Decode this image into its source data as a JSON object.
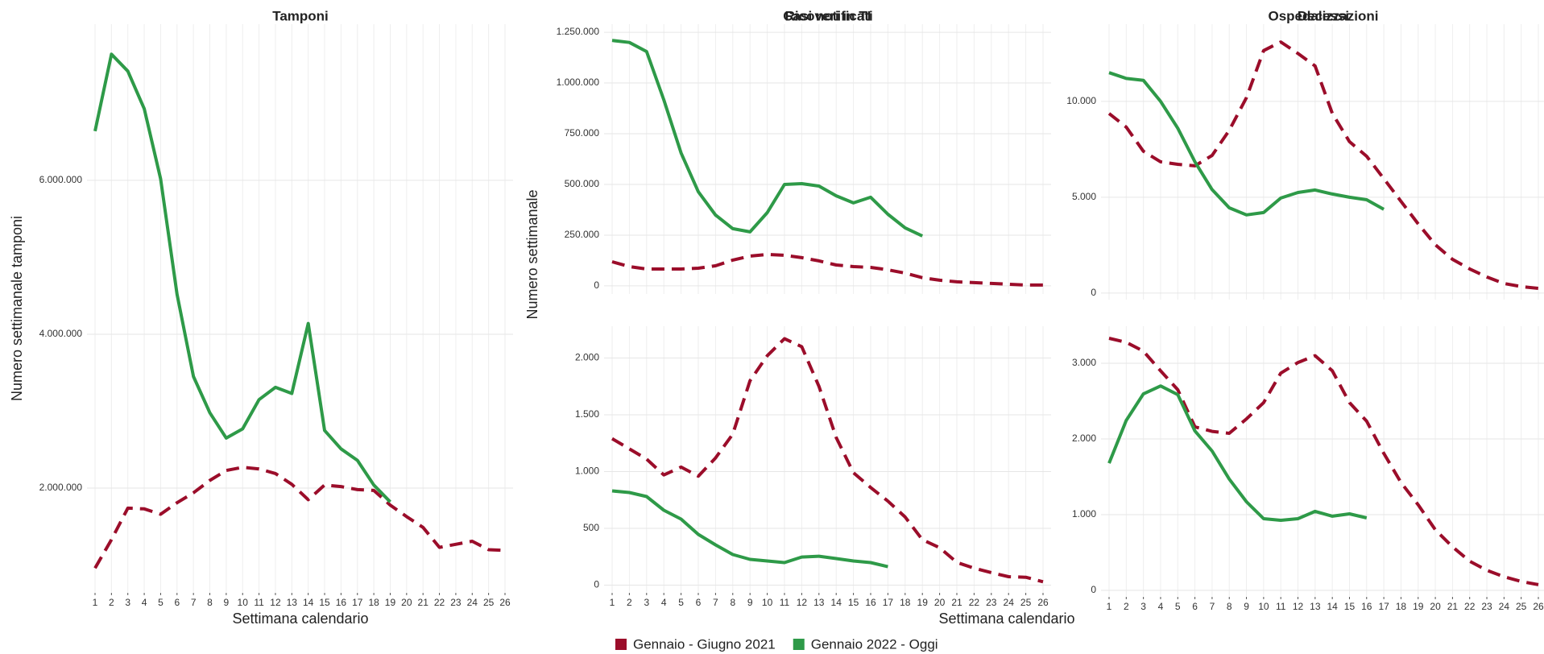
{
  "chart_data": [
    {
      "type": "line",
      "title": "Tamponi",
      "y_label": "Numero settimanale tamponi",
      "x_label": "Settimana calendario",
      "categories": [
        "1",
        "2",
        "3",
        "4",
        "5",
        "6",
        "7",
        "8",
        "9",
        "10",
        "11",
        "12",
        "13",
        "14",
        "15",
        "16",
        "17",
        "18",
        "19",
        "20",
        "21",
        "22",
        "23",
        "24",
        "25",
        "26"
      ],
      "ylim": [
        650000,
        8030000
      ],
      "yticks": [
        {
          "value": 2000000,
          "label": "2.000.000"
        },
        {
          "value": 4000000,
          "label": "4.000.000"
        },
        {
          "value": 6000000,
          "label": "6.000.000"
        }
      ],
      "grid": true,
      "series": [
        {
          "name": "Gennaio - Giugno 2021",
          "color": "#9b0d2a",
          "line_style": "dashed",
          "values": [
            960000,
            1330000,
            1740000,
            1730000,
            1660000,
            1810000,
            1940000,
            2100000,
            2230000,
            2270000,
            2250000,
            2190000,
            2050000,
            1850000,
            2040000,
            2020000,
            1980000,
            1970000,
            1780000,
            1630000,
            1490000,
            1230000,
            1270000,
            1310000,
            1200000,
            1190000
          ]
        },
        {
          "name": "Gennaio 2022 - Oggi",
          "color": "#2e9a48",
          "line_style": "solid",
          "values": [
            6640000,
            7640000,
            7420000,
            6930000,
            6020000,
            4520000,
            3450000,
            2980000,
            2650000,
            2770000,
            3150000,
            3310000,
            3230000,
            4140000,
            2750000,
            2510000,
            2360000,
            2040000,
            1820000,
            null,
            null,
            null,
            null,
            null,
            null,
            null
          ]
        }
      ]
    },
    {
      "type": "line",
      "title": "Casi notificati",
      "y_label": "Numero settimanale",
      "ylim": [
        -40000,
        1290000
      ],
      "yticks": [
        0,
        {
          "value": 250000,
          "label": "250.000"
        },
        {
          "value": 500000,
          "label": "500.000"
        },
        {
          "value": 750000,
          "label": "750.000"
        },
        {
          "value": 1000000,
          "label": "1.000.000"
        },
        {
          "value": 1250000,
          "label": "1.250.000"
        }
      ],
      "grid": true,
      "series": [
        {
          "color": "#9b0d2a",
          "line_style": "dashed",
          "values": [
            119000,
            95000,
            83000,
            83000,
            83000,
            87000,
            99000,
            127000,
            147000,
            155000,
            151000,
            139000,
            123000,
            103000,
            95000,
            91000,
            79000,
            63000,
            40000,
            28000,
            20000,
            16000,
            12000,
            8000,
            4000,
            4000
          ]
        },
        {
          "color": "#2e9a48",
          "line_style": "solid",
          "values": [
            1210000,
            1200000,
            1155000,
            917000,
            655000,
            464000,
            349000,
            282000,
            266000,
            361000,
            500000,
            504000,
            492000,
            444000,
            409000,
            437000,
            353000,
            286000,
            246000,
            null,
            null,
            null,
            null,
            null,
            null,
            null
          ]
        }
      ]
    },
    {
      "type": "line",
      "title": "Ospedalizzazioni",
      "ylim": [
        -340,
        14030
      ],
      "yticks": [
        0,
        {
          "value": 5000,
          "label": "5.000"
        },
        {
          "value": 10000,
          "label": "10.000"
        }
      ],
      "grid": true,
      "series": [
        {
          "color": "#9b0d2a",
          "line_style": "dashed",
          "values": [
            9370,
            8660,
            7400,
            6850,
            6720,
            6640,
            7180,
            8490,
            10200,
            12650,
            13100,
            12500,
            11850,
            9370,
            7900,
            7140,
            5970,
            4790,
            3610,
            2520,
            1760,
            1260,
            840,
            500,
            340,
            250
          ]
        },
        {
          "color": "#2e9a48",
          "line_style": "solid",
          "values": [
            11500,
            11200,
            11100,
            10000,
            8600,
            6850,
            5400,
            4450,
            4080,
            4200,
            4960,
            5250,
            5380,
            5170,
            5000,
            4870,
            4370,
            null,
            null,
            null,
            null,
            null,
            null,
            null,
            null,
            null
          ]
        }
      ]
    },
    {
      "type": "line",
      "title": "Ricoveri in TI",
      "categories": [
        "1",
        "2",
        "3",
        "4",
        "5",
        "6",
        "7",
        "8",
        "9",
        "10",
        "11",
        "12",
        "13",
        "14",
        "15",
        "16",
        "17",
        "18",
        "19",
        "20",
        "21",
        "22",
        "23",
        "24",
        "25",
        "26"
      ],
      "ylim": [
        -60,
        2280
      ],
      "yticks": [
        0,
        500,
        {
          "value": 1000,
          "label": "1.000"
        },
        {
          "value": 1500,
          "label": "1.500"
        },
        {
          "value": 2000,
          "label": "2.000"
        }
      ],
      "grid": true,
      "series": [
        {
          "color": "#9b0d2a",
          "line_style": "dashed",
          "values": [
            1290,
            1200,
            1110,
            970,
            1040,
            960,
            1120,
            1330,
            1800,
            2020,
            2170,
            2100,
            1750,
            1300,
            990,
            860,
            740,
            600,
            400,
            330,
            200,
            150,
            110,
            75,
            70,
            30
          ]
        },
        {
          "color": "#2e9a48",
          "line_style": "solid",
          "values": [
            830,
            816,
            780,
            660,
            582,
            447,
            355,
            270,
            227,
            213,
            199,
            248,
            255,
            234,
            213,
            199,
            163,
            null,
            null,
            null,
            null,
            null,
            null,
            null,
            null,
            null
          ]
        }
      ]
    },
    {
      "type": "line",
      "title": "Decessi",
      "x_label": "Settimana calendario",
      "categories": [
        "1",
        "2",
        "3",
        "4",
        "5",
        "6",
        "7",
        "8",
        "9",
        "10",
        "11",
        "12",
        "13",
        "14",
        "15",
        "16",
        "17",
        "18",
        "19",
        "20",
        "21",
        "22",
        "23",
        "24",
        "25",
        "26"
      ],
      "ylim": [
        -75,
        3490
      ],
      "yticks": [
        0,
        {
          "value": 1000,
          "label": "1.000"
        },
        {
          "value": 2000,
          "label": "2.000"
        },
        {
          "value": 3000,
          "label": "3.000"
        }
      ],
      "grid": true,
      "series": [
        {
          "color": "#9b0d2a",
          "line_style": "dashed",
          "values": [
            3330,
            3277,
            3160,
            2900,
            2650,
            2160,
            2100,
            2075,
            2265,
            2480,
            2870,
            3010,
            3100,
            2900,
            2480,
            2235,
            1810,
            1425,
            1130,
            800,
            575,
            385,
            265,
            180,
            117,
            75
          ]
        },
        {
          "color": "#2e9a48",
          "line_style": "solid",
          "values": [
            1680,
            2245,
            2595,
            2700,
            2585,
            2105,
            1840,
            1470,
            1170,
            947,
            925,
            947,
            1043,
            980,
            1010,
            957,
            null,
            null,
            null,
            null,
            null,
            null,
            null,
            null,
            null,
            null
          ]
        }
      ]
    }
  ]
}
